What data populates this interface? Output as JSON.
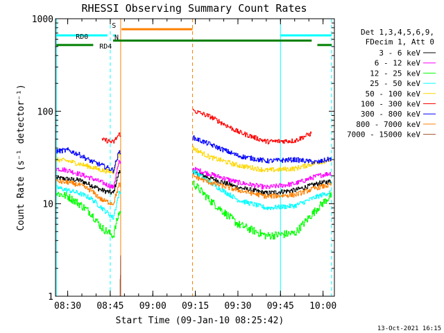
{
  "chart_data": {
    "type": "line",
    "title": "RHESSI Observing Summary Count Rates",
    "xlabel": "Start Time (09-Jan-10 08:25:42)",
    "ylabel": "Count Rate (s⁻¹ detector⁻¹)",
    "y_scale": "log",
    "ylim": [
      1,
      1000
    ],
    "xlim": [
      "08:25:42",
      "10:04:00"
    ],
    "x_ticks": [
      "08:30",
      "08:45",
      "09:00",
      "09:15",
      "09:30",
      "09:45",
      "10:00"
    ],
    "y_ticks": [
      "1",
      "10",
      "100",
      "1000"
    ],
    "legend_position": "right",
    "legend_header": [
      "Det 1,3,4,5,6,9,",
      "FDecim 1, Att 0"
    ],
    "grid": false,
    "gaps": [
      [
        "08:48:40",
        "09:14:00"
      ]
    ],
    "series": [
      {
        "name": "3 - 6 keV",
        "color": "#000000",
        "x": [
          "08:26",
          "08:30",
          "08:34",
          "08:38",
          "08:42",
          "08:46",
          "08:48",
          "09:14",
          "09:20",
          "09:30",
          "09:40",
          "09:50",
          "09:58",
          "10:03"
        ],
        "values": [
          19,
          18.5,
          18,
          16,
          14,
          13,
          22,
          22,
          19,
          15,
          13,
          14,
          16.5,
          17.5
        ]
      },
      {
        "name": "6 - 12 keV",
        "color": "#ff00ff",
        "x": [
          "08:26",
          "08:30",
          "08:34",
          "08:38",
          "08:42",
          "08:46",
          "08:48",
          "09:14",
          "09:20",
          "09:30",
          "09:40",
          "09:50",
          "09:58",
          "10:03"
        ],
        "values": [
          24,
          23,
          21,
          19,
          17,
          15,
          28,
          24,
          21,
          17,
          15,
          16.5,
          20,
          21.5
        ]
      },
      {
        "name": "12 - 25 keV",
        "color": "#00ff00",
        "x": [
          "08:26",
          "08:30",
          "08:34",
          "08:38",
          "08:42",
          "08:46",
          "08:48",
          "09:14",
          "09:20",
          "09:30",
          "09:40",
          "09:50",
          "09:58",
          "10:03"
        ],
        "values": [
          13,
          12,
          10,
          8,
          5.5,
          4.5,
          8,
          17,
          11,
          6,
          4.5,
          4.8,
          9,
          12.5
        ]
      },
      {
        "name": "25 - 50 keV",
        "color": "#00ffff",
        "x": [
          "08:26",
          "08:30",
          "08:34",
          "08:38",
          "08:42",
          "08:46",
          "08:48",
          "09:14",
          "09:20",
          "09:30",
          "09:40",
          "09:50",
          "09:58",
          "10:03"
        ],
        "values": [
          15,
          14,
          13,
          11.5,
          9,
          7,
          13,
          23,
          17,
          11,
          9,
          9.5,
          12,
          13.5
        ]
      },
      {
        "name": "50 - 100 keV",
        "color": "#ffd700",
        "x": [
          "08:26",
          "08:30",
          "08:34",
          "08:38",
          "08:42",
          "08:46",
          "08:48",
          "09:14",
          "09:20",
          "09:30",
          "09:40",
          "09:50",
          "09:58",
          "10:03"
        ],
        "values": [
          30,
          29,
          27,
          25,
          23,
          22,
          35,
          40,
          32,
          26,
          23,
          24,
          28,
          30
        ]
      },
      {
        "name": "100 - 300 keV",
        "color": "#ff0000",
        "x": [
          "08:42",
          "08:43",
          "08:46",
          "08:48",
          "09:14",
          "09:20",
          "09:30",
          "09:40",
          "09:50",
          "09:56"
        ],
        "values": [
          48,
          49,
          46,
          56,
          102,
          88,
          60,
          47,
          48,
          58
        ]
      },
      {
        "name": "300 - 800 keV",
        "color": "#0000ff",
        "x": [
          "08:26",
          "08:30",
          "08:34",
          "08:38",
          "08:42",
          "08:46",
          "08:48",
          "09:14",
          "09:20",
          "09:30",
          "09:40",
          "09:50",
          "09:58",
          "10:03"
        ],
        "values": [
          37,
          38,
          34,
          29,
          26,
          23,
          36,
          52,
          44,
          33,
          29,
          30,
          28,
          31
        ]
      },
      {
        "name": "800 - 7000 keV",
        "color": "#ff8000",
        "x": [
          "08:26",
          "08:30",
          "08:34",
          "08:38",
          "08:42",
          "08:46",
          "08:48",
          "09:14",
          "09:20",
          "09:30",
          "09:40",
          "09:50",
          "09:58",
          "10:03"
        ],
        "values": [
          17.5,
          17,
          16,
          14,
          11,
          10,
          16,
          20,
          17,
          14,
          12,
          12.5,
          15,
          16
        ]
      },
      {
        "name": "7000 - 15000 keV",
        "color": "#a0522d",
        "x": [
          "08:48:30",
          "08:48:40"
        ],
        "values": [
          1.2,
          2.5
        ]
      }
    ],
    "annotations": [
      {
        "label": "S",
        "color": "#ff8000",
        "x": [
          "08:49",
          "09:14"
        ],
        "y": 770
      },
      {
        "label": "N",
        "color": "#00ffff",
        "x": [
          "08:46",
          "08:47"
        ],
        "y": 660
      },
      {
        "label": "RD0",
        "color": "#00ffff",
        "x": [
          "08:26",
          "08:44"
        ],
        "y": 660
      },
      {
        "label": "",
        "color": "#00ffff",
        "x": [
          "09:45",
          "10:03"
        ],
        "y": 660
      },
      {
        "label": "RD4",
        "color": "#008000",
        "x": [
          "08:26",
          "08:39"
        ],
        "y": 520
      },
      {
        "label": "",
        "color": "#008000",
        "x": [
          "08:46",
          "09:56"
        ],
        "y": 580
      },
      {
        "label": "",
        "color": "#008000",
        "x": [
          "09:58",
          "10:03"
        ],
        "y": 520
      }
    ],
    "vertical_lines": [
      {
        "x": "08:26",
        "color": "#00ffff",
        "style": "solid"
      },
      {
        "x": "08:45",
        "color": "#00ffff",
        "style": "dashed"
      },
      {
        "x": "08:48:40",
        "color": "#ff8000",
        "style": "solid"
      },
      {
        "x": "09:14",
        "color": "#ff8000",
        "style": "dashed"
      },
      {
        "x": "09:45",
        "color": "#00ffff",
        "style": "solid"
      },
      {
        "x": "10:03",
        "color": "#00ffff",
        "style": "dashed"
      }
    ]
  },
  "footer": {
    "timestamp": "13-Oct-2021 16:15"
  }
}
